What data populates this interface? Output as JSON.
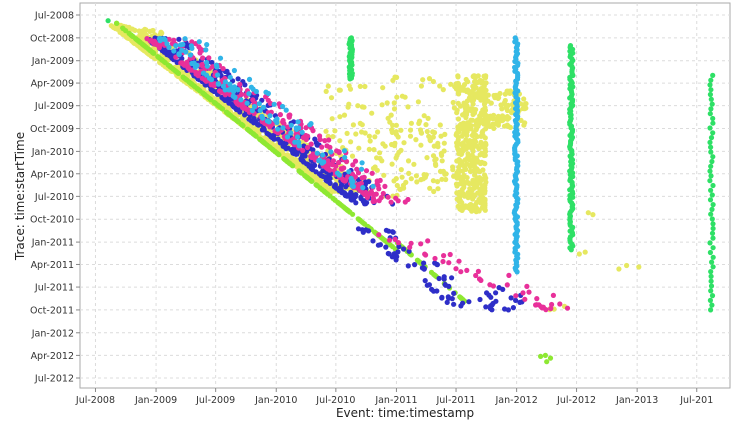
{
  "chart_data": {
    "type": "scatter",
    "xlabel": "Event: time:timestamp",
    "ylabel": "Trace: time:startTime",
    "xlim": [
      "2008-05-15",
      "2013-10-10"
    ],
    "ylim": [
      "2008-07-01",
      "2012-07-01"
    ],
    "x_ticks": [
      "Jul-2008",
      "Jan-2009",
      "Jul-2009",
      "Jan-2010",
      "Jul-2010",
      "Jan-2011",
      "Jul-2011",
      "Jan-2012",
      "Jul-2012",
      "Jan-2013",
      "Jul-201"
    ],
    "x_tick_dates": [
      "2008-07-01",
      "2009-01-01",
      "2009-07-01",
      "2010-01-01",
      "2010-07-01",
      "2011-01-01",
      "2011-07-01",
      "2012-01-01",
      "2012-07-01",
      "2013-01-01",
      "2013-07-01"
    ],
    "y_ticks": [
      "Jul-2008",
      "Oct-2008",
      "Jan-2009",
      "Apr-2009",
      "Jul-2009",
      "Oct-2009",
      "Jan-2010",
      "Apr-2010",
      "Jul-2010",
      "Oct-2010",
      "Jan-2011",
      "Apr-2011",
      "Jul-2011",
      "Oct-2011",
      "Jan-2012",
      "Apr-2012",
      "Jul-2012"
    ],
    "y_tick_dates": [
      "2008-07-01",
      "2008-10-01",
      "2009-01-01",
      "2009-04-01",
      "2009-07-01",
      "2009-10-01",
      "2010-01-01",
      "2010-04-01",
      "2010-07-01",
      "2010-10-01",
      "2011-01-01",
      "2011-04-01",
      "2011-07-01",
      "2011-10-01",
      "2012-01-01",
      "2012-04-01",
      "2012-07-01"
    ],
    "grid": true,
    "legend": "none",
    "colors": [
      "#e6e860",
      "#8ee832",
      "#2e2ec8",
      "#e8309a",
      "#30b4e8",
      "#2ee066"
    ],
    "series": [
      {
        "color": "#e6e860",
        "clusters": [
          {
            "x0": "2008-08-15",
            "x1": "2010-06-15",
            "y0": "2008-08-10",
            "y1": "2010-06-15",
            "n": 900,
            "diag": true
          },
          {
            "x0": "2010-06-01",
            "x1": "2011-07-01",
            "y0": "2009-03-01",
            "y1": "2010-07-01",
            "n": 150
          },
          {
            "x0": "2011-07-01",
            "x1": "2011-10-01",
            "y0": "2009-03-01",
            "y1": "2010-09-01",
            "n": 400
          },
          {
            "x0": "2011-10-01",
            "x1": "2012-02-01",
            "y0": "2009-05-01",
            "y1": "2009-10-01",
            "n": 80
          },
          {
            "x0": "2010-12-01",
            "x1": "2011-06-01",
            "y0": "2009-09-01",
            "y1": "2010-06-01",
            "n": 40
          },
          {
            "x0": "2012-04-01",
            "x1": "2012-06-01",
            "y0": "2011-09-01",
            "y1": "2011-10-01",
            "n": 4
          },
          {
            "x0": "2012-11-01",
            "x1": "2013-02-01",
            "y0": "2011-04-01",
            "y1": "2011-05-01",
            "n": 3
          },
          {
            "x0": "2012-08-01",
            "x1": "2012-09-01",
            "y0": "2010-09-01",
            "y1": "2010-09-15",
            "n": 2
          },
          {
            "x0": "2012-07-01",
            "x1": "2012-08-01",
            "y0": "2011-02-01",
            "y1": "2011-03-01",
            "n": 2
          }
        ]
      },
      {
        "color": "#8ee832",
        "clusters": [
          {
            "x0": "2008-09-01",
            "x1": "2011-01-01",
            "y0": "2008-08-01",
            "y1": "2011-02-01",
            "n": 260,
            "diag": true,
            "tight": true
          },
          {
            "x0": "2011-01-01",
            "x1": "2011-08-01",
            "y0": "2011-01-01",
            "y1": "2011-09-01",
            "n": 40,
            "diag": true,
            "tight": true
          },
          {
            "x0": "2012-03-01",
            "x1": "2012-04-15",
            "y0": "2012-04-01",
            "y1": "2012-05-01",
            "n": 4
          }
        ]
      },
      {
        "color": "#2e2ec8",
        "clusters": [
          {
            "x0": "2008-12-01",
            "x1": "2010-09-01",
            "y0": "2008-10-01",
            "y1": "2010-08-01",
            "n": 420,
            "diag": true
          },
          {
            "x0": "2010-09-01",
            "x1": "2011-07-01",
            "y0": "2010-11-01",
            "y1": "2011-10-01",
            "n": 60,
            "diag": true
          },
          {
            "x0": "2011-10-01",
            "x1": "2012-02-01",
            "y0": "2011-07-01",
            "y1": "2011-10-01",
            "n": 20
          }
        ]
      },
      {
        "color": "#e8309a",
        "clusters": [
          {
            "x0": "2008-12-01",
            "x1": "2010-11-01",
            "y0": "2008-10-01",
            "y1": "2010-08-01",
            "n": 300,
            "diag": true
          },
          {
            "x0": "2010-11-01",
            "x1": "2012-04-01",
            "y0": "2010-12-01",
            "y1": "2011-10-01",
            "n": 45,
            "diag": true
          }
        ]
      },
      {
        "color": "#30b4e8",
        "clusters": [
          {
            "x0": "2009-01-01",
            "x1": "2010-09-01",
            "y0": "2008-10-01",
            "y1": "2010-06-01",
            "n": 120,
            "diag": true
          },
          {
            "x0": "2011-12-25",
            "x1": "2012-01-05",
            "y0": "2008-10-01",
            "y1": "2011-05-01",
            "n": 120,
            "column": true
          }
        ]
      },
      {
        "color": "#2ee066",
        "clusters": [
          {
            "x0": "2010-08-10",
            "x1": "2010-08-20",
            "y0": "2008-10-01",
            "y1": "2009-03-15",
            "n": 60,
            "column": true
          },
          {
            "x0": "2012-06-10",
            "x1": "2012-06-20",
            "y0": "2008-11-01",
            "y1": "2011-02-01",
            "n": 110,
            "column": true
          },
          {
            "x0": "2013-08-10",
            "x1": "2013-08-20",
            "y0": "2009-03-01",
            "y1": "2011-10-01",
            "n": 50,
            "column": true
          },
          {
            "x0": "2008-08-05",
            "x1": "2008-08-15",
            "y0": "2008-07-20",
            "y1": "2008-08-01",
            "n": 1
          }
        ]
      }
    ]
  }
}
